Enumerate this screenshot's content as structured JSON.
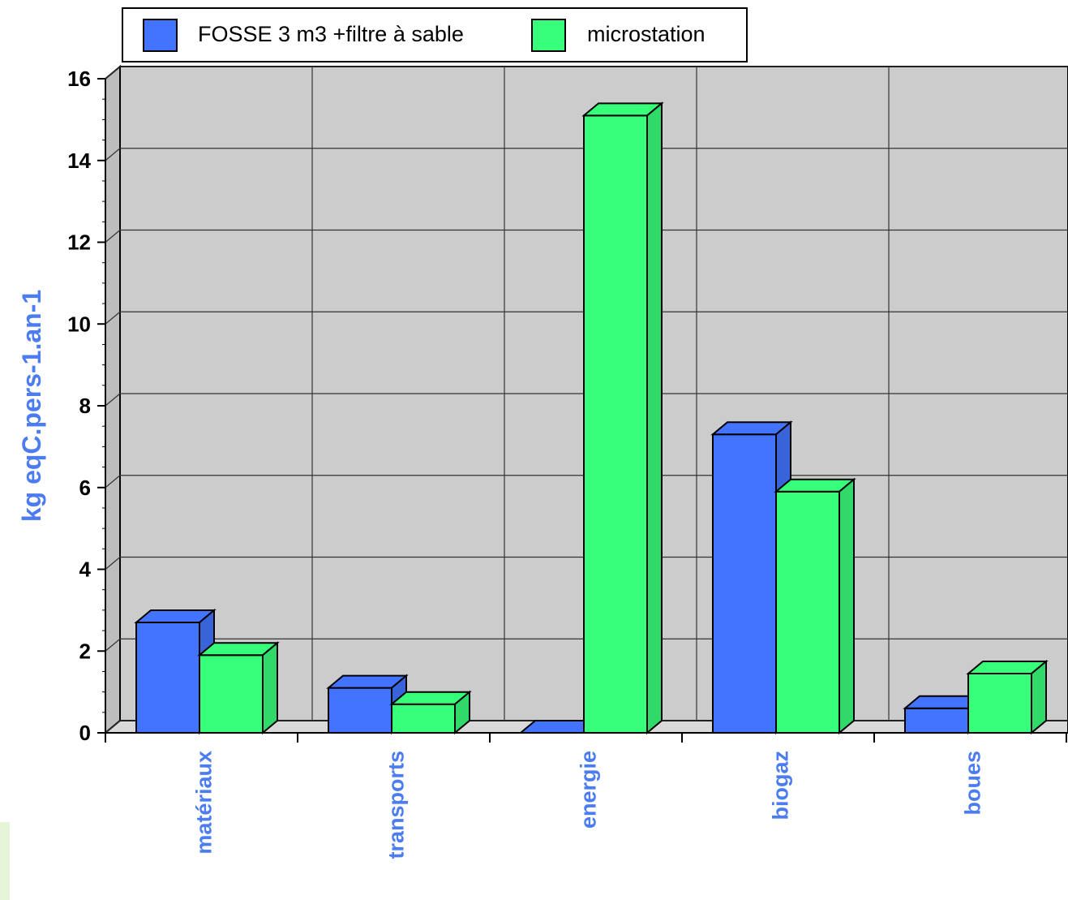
{
  "chart_data": {
    "type": "bar",
    "title": "",
    "xlabel": "",
    "ylabel": "kg eqC.pers-1.an-1",
    "ylim": [
      0,
      16
    ],
    "yticks": [
      0,
      2,
      4,
      6,
      8,
      10,
      12,
      14,
      16
    ],
    "grid": true,
    "style": "3d",
    "legend_position": "top",
    "categories": [
      "matériaux",
      "transports",
      "energie",
      "biogaz",
      "boues"
    ],
    "series": [
      {
        "name": "FOSSE 3 m3 +filtre à sable",
        "color": "#4374ff",
        "values": [
          2.7,
          1.1,
          0.0,
          7.3,
          0.6
        ]
      },
      {
        "name": "microstation",
        "color": "#38ff7a",
        "values": [
          1.9,
          0.7,
          15.1,
          5.9,
          1.45
        ]
      }
    ],
    "colors": {
      "plot_background": "#cccccc",
      "label_color": "#4b7cf0"
    }
  }
}
